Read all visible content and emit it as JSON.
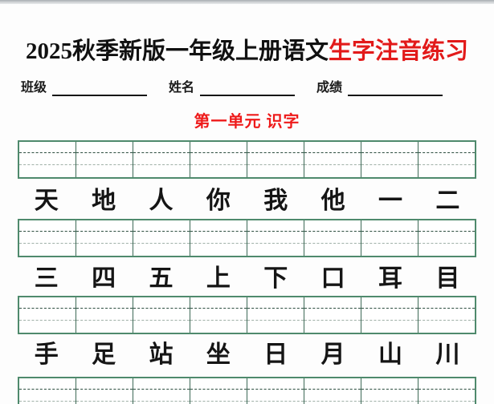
{
  "title": {
    "black": "2025秋季新版一年级上册语文",
    "red": "生字注音练习"
  },
  "fields": {
    "class_label": "班级",
    "name_label": "姓名",
    "score_label": "成绩",
    "class_value": "",
    "name_value": "",
    "score_value": ""
  },
  "section": {
    "title": "第一单元 识字"
  },
  "character_rows": [
    [
      "天",
      "地",
      "人",
      "你",
      "我",
      "他",
      "一",
      "二"
    ],
    [
      "三",
      "四",
      "五",
      "上",
      "下",
      "口",
      "耳",
      "目"
    ],
    [
      "手",
      "足",
      "站",
      "坐",
      "日",
      "月",
      "山",
      "川"
    ]
  ],
  "pinyin_grid": {
    "columns": 8,
    "grids_count": 4,
    "lines_per_cell": 4
  },
  "colors": {
    "accent_red": "#e21a1a",
    "grid_frame_green": "#4f8a6d",
    "grid_dash_dark": "#2b4c3e",
    "grid_dash_light": "#9fb0a7"
  }
}
